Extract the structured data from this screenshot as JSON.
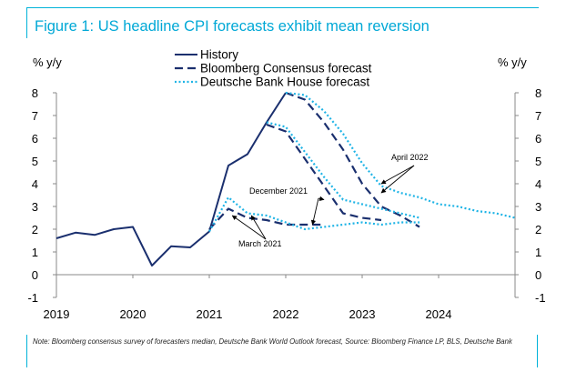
{
  "title": "Figure 1: US headline CPI forecasts exhibit mean reversion",
  "note": "Note: Bloomberg consensus survey of forecasters median, Deutsche Bank World Outlook forecast, Source: Bloomberg Finance LP, BLS, Deutsche Bank",
  "chart_data": {
    "type": "line",
    "title": "Figure 1: US headline CPI forecasts exhibit mean reversion",
    "ylabel_left": "% y/y",
    "ylabel_right": "% y/y",
    "ylim": [
      -1,
      8
    ],
    "yticks": [
      "-1",
      "0",
      "1",
      "2",
      "3",
      "4",
      "5",
      "6",
      "7",
      "8"
    ],
    "xlim": [
      2019.0,
      2025.0
    ],
    "xticks": [
      "2019",
      "2020",
      "2021",
      "2022",
      "2023",
      "2024"
    ],
    "grid": false,
    "legend_position": "top-center",
    "colors": {
      "history": "#1a2f6e",
      "bloomberg": "#1a2f6e",
      "db": "#1fb4e6"
    },
    "series": [
      {
        "name": "History",
        "style": "solid",
        "key": "history",
        "points": [
          [
            2019.0,
            1.6
          ],
          [
            2019.25,
            1.85
          ],
          [
            2019.5,
            1.75
          ],
          [
            2019.75,
            2.0
          ],
          [
            2020.0,
            2.1
          ],
          [
            2020.25,
            0.4
          ],
          [
            2020.5,
            1.25
          ],
          [
            2020.75,
            1.2
          ],
          [
            2021.0,
            1.9
          ],
          [
            2021.25,
            4.8
          ],
          [
            2021.5,
            5.3
          ],
          [
            2021.75,
            6.7
          ],
          [
            2022.0,
            8.0
          ]
        ]
      },
      {
        "name": "Bloomberg Consensus forecast",
        "style": "dashed",
        "key": "bloomberg",
        "group": "March 2021",
        "points": [
          [
            2021.0,
            2.0
          ],
          [
            2021.25,
            2.9
          ],
          [
            2021.5,
            2.5
          ],
          [
            2021.75,
            2.4
          ],
          [
            2022.0,
            2.2
          ],
          [
            2022.25,
            2.2
          ],
          [
            2022.5,
            2.2
          ]
        ]
      },
      {
        "name": "Bloomberg Consensus forecast",
        "style": "dashed",
        "key": "bloomberg",
        "group": "December 2021",
        "points": [
          [
            2021.75,
            6.6
          ],
          [
            2022.0,
            6.3
          ],
          [
            2022.25,
            5.1
          ],
          [
            2022.5,
            3.9
          ],
          [
            2022.75,
            2.7
          ],
          [
            2023.0,
            2.5
          ],
          [
            2023.25,
            2.4
          ]
        ]
      },
      {
        "name": "Bloomberg Consensus forecast",
        "style": "dashed",
        "key": "bloomberg",
        "group": "April 2022",
        "points": [
          [
            2022.0,
            8.0
          ],
          [
            2022.25,
            7.7
          ],
          [
            2022.5,
            6.7
          ],
          [
            2022.75,
            5.5
          ],
          [
            2023.0,
            4.0
          ],
          [
            2023.25,
            3.0
          ],
          [
            2023.5,
            2.6
          ],
          [
            2023.75,
            2.1
          ]
        ]
      },
      {
        "name": "Deutsche Bank House forecast",
        "style": "dotted",
        "key": "db",
        "group": "March 2021",
        "points": [
          [
            2021.0,
            1.9
          ],
          [
            2021.25,
            3.4
          ],
          [
            2021.5,
            2.7
          ],
          [
            2021.75,
            2.6
          ],
          [
            2022.0,
            2.3
          ],
          [
            2022.25,
            2.0
          ],
          [
            2022.5,
            2.1
          ],
          [
            2022.75,
            2.2
          ],
          [
            2023.0,
            2.3
          ],
          [
            2023.25,
            2.2
          ],
          [
            2023.5,
            2.3
          ],
          [
            2023.75,
            2.3
          ]
        ]
      },
      {
        "name": "Deutsche Bank House forecast",
        "style": "dotted",
        "key": "db",
        "group": "December 2021",
        "points": [
          [
            2021.75,
            6.7
          ],
          [
            2022.0,
            6.5
          ],
          [
            2022.25,
            5.4
          ],
          [
            2022.5,
            4.3
          ],
          [
            2022.75,
            3.3
          ],
          [
            2023.0,
            3.1
          ],
          [
            2023.25,
            2.9
          ],
          [
            2023.5,
            2.7
          ],
          [
            2023.75,
            2.5
          ]
        ]
      },
      {
        "name": "Deutsche Bank House forecast",
        "style": "dotted",
        "key": "db",
        "group": "April 2022",
        "points": [
          [
            2022.0,
            8.0
          ],
          [
            2022.25,
            7.9
          ],
          [
            2022.5,
            7.2
          ],
          [
            2022.75,
            6.2
          ],
          [
            2023.0,
            4.9
          ],
          [
            2023.25,
            3.9
          ],
          [
            2023.5,
            3.6
          ],
          [
            2023.75,
            3.4
          ],
          [
            2024.0,
            3.1
          ],
          [
            2024.25,
            3.0
          ],
          [
            2024.5,
            2.8
          ],
          [
            2024.75,
            2.7
          ],
          [
            2025.0,
            2.5
          ]
        ]
      }
    ],
    "legend": [
      {
        "label": "History",
        "style": "solid",
        "key": "history"
      },
      {
        "label": "Bloomberg Consensus forecast",
        "style": "dashed",
        "key": "bloomberg"
      },
      {
        "label": "Deutsche Bank House forecast",
        "style": "dotted",
        "key": "db"
      }
    ],
    "annotations": [
      {
        "text": "April 2022",
        "arrows_to": [
          [
            2023.25,
            4.0
          ],
          [
            2023.25,
            3.6
          ]
        ]
      },
      {
        "text": "December 2021",
        "arrows_to": [
          [
            2022.5,
            3.3
          ],
          [
            2022.35,
            2.2
          ]
        ]
      },
      {
        "text": "March 2021",
        "arrows_to": [
          [
            2021.3,
            2.6
          ],
          [
            2021.55,
            2.6
          ]
        ]
      }
    ]
  }
}
